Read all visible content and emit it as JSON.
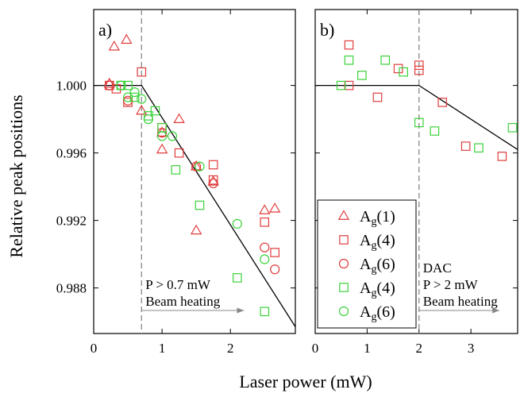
{
  "colors": {
    "red": "#e03c3c",
    "green": "#3bd23b",
    "axis": "#000000",
    "dash": "#888888",
    "arrow": "#888888"
  },
  "chart_data": [
    {
      "type": "scatter",
      "panel_label": "a)",
      "xlabel": "Laser power (mW)",
      "ylabel": "Relative peak positions",
      "xlim": [
        0,
        2.95
      ],
      "ylim": [
        0.9853,
        1.0045
      ],
      "xticks": [
        0,
        1,
        2
      ],
      "yticks": [
        0.988,
        0.992,
        0.996,
        1.0
      ],
      "ytick_labels": [
        "0.988",
        "0.992",
        "0.996",
        "1.000"
      ],
      "threshold_x": 0.7,
      "fit_line": [
        [
          0,
          1.0
        ],
        [
          0.7,
          1.0
        ],
        [
          2.95,
          0.9857
        ]
      ],
      "annotation": {
        "lines": [
          "P > 0.7 mW",
          "Beam heating"
        ],
        "arrow_from": 0.7,
        "arrow_to": 2.2
      },
      "series": [
        {
          "name": "Ag(1)",
          "marker": "triangle",
          "color": "red",
          "points": [
            [
              0.3,
              1.0023
            ],
            [
              0.48,
              1.0027
            ],
            [
              0.23,
              1.0001
            ],
            [
              0.7,
              0.9985
            ],
            [
              1.0,
              0.9962
            ],
            [
              1.0,
              0.9972
            ],
            [
              1.25,
              0.998
            ],
            [
              1.5,
              0.9952
            ],
            [
              1.75,
              0.9943
            ],
            [
              1.5,
              0.9914
            ],
            [
              2.5,
              0.9926
            ],
            [
              2.65,
              0.9927
            ]
          ]
        },
        {
          "name": "Ag(4)",
          "marker": "square",
          "color": "red",
          "points": [
            [
              0.23,
              1.0
            ],
            [
              0.33,
              0.9998
            ],
            [
              0.5,
              0.999
            ],
            [
              0.7,
              1.0008
            ],
            [
              1.0,
              0.9975
            ],
            [
              1.25,
              0.996
            ],
            [
              1.75,
              0.9953
            ],
            [
              1.75,
              0.9944
            ],
            [
              2.5,
              0.9919
            ],
            [
              2.65,
              0.9901
            ]
          ]
        },
        {
          "name": "Ag(6)",
          "marker": "circle",
          "color": "red",
          "points": [
            [
              0.23,
              1.0
            ],
            [
              0.5,
              0.9991
            ],
            [
              1.0,
              0.9972
            ],
            [
              1.5,
              0.9952
            ],
            [
              1.75,
              0.9942
            ],
            [
              2.5,
              0.9904
            ],
            [
              2.65,
              0.9891
            ]
          ]
        },
        {
          "name": "Ag(4)",
          "marker": "square",
          "color": "green",
          "points": [
            [
              0.4,
              1.0
            ],
            [
              0.5,
              1.0
            ],
            [
              0.6,
              0.9993
            ],
            [
              0.8,
              0.9982
            ],
            [
              0.9,
              0.9985
            ],
            [
              1.0,
              0.9975
            ],
            [
              1.2,
              0.995
            ],
            [
              1.55,
              0.9929
            ],
            [
              2.1,
              0.9886
            ],
            [
              2.5,
              0.9866
            ]
          ]
        },
        {
          "name": "Ag(6)",
          "marker": "circle",
          "color": "green",
          "points": [
            [
              0.4,
              1.0
            ],
            [
              0.5,
              0.9993
            ],
            [
              0.6,
              0.9996
            ],
            [
              0.7,
              0.9992
            ],
            [
              0.8,
              0.998
            ],
            [
              1.0,
              0.997
            ],
            [
              1.15,
              0.997
            ],
            [
              1.55,
              0.9952
            ],
            [
              2.1,
              0.9918
            ],
            [
              2.5,
              0.9897
            ]
          ]
        }
      ]
    },
    {
      "type": "scatter",
      "panel_label": "b)",
      "xlim": [
        0,
        3.9
      ],
      "ylim": [
        0.9853,
        1.0045
      ],
      "xticks": [
        0,
        1,
        2,
        3
      ],
      "threshold_x": 2.0,
      "fit_line": [
        [
          0,
          1.0
        ],
        [
          2.0,
          1.0
        ],
        [
          3.9,
          0.9962
        ]
      ],
      "annotation": {
        "lines": [
          "DAC",
          "P > 2 mW",
          "Beam heating"
        ],
        "arrow_from": 2.0,
        "arrow_to": 3.55
      },
      "series": [
        {
          "name": "Ag(4)",
          "marker": "square",
          "color": "red",
          "points": [
            [
              0.65,
              1.0024
            ],
            [
              0.65,
              1.0
            ],
            [
              1.2,
              0.9993
            ],
            [
              1.6,
              1.001
            ],
            [
              2.0,
              1.0012
            ],
            [
              2.0,
              1.0009
            ],
            [
              2.45,
              0.999
            ],
            [
              2.9,
              0.9964
            ],
            [
              3.6,
              0.9958
            ]
          ]
        },
        {
          "name": "Ag(4)",
          "marker": "square",
          "color": "green",
          "points": [
            [
              0.5,
              1.0
            ],
            [
              0.65,
              1.0015
            ],
            [
              0.9,
              1.0006
            ],
            [
              1.35,
              1.0015
            ],
            [
              1.7,
              1.0008
            ],
            [
              2.0,
              0.9978
            ],
            [
              2.3,
              0.9973
            ],
            [
              3.15,
              0.9963
            ],
            [
              3.8,
              0.9975
            ]
          ]
        }
      ]
    }
  ],
  "legend": [
    {
      "base": "A",
      "sub": "g",
      "suffix": "(1)",
      "marker": "triangle",
      "color": "red"
    },
    {
      "base": "A",
      "sub": "g",
      "suffix": "(4)",
      "marker": "square",
      "color": "red"
    },
    {
      "base": "A",
      "sub": "g",
      "suffix": "(6)",
      "marker": "circle",
      "color": "red"
    },
    {
      "base": "A",
      "sub": "g",
      "suffix": "(4)",
      "marker": "square",
      "color": "green"
    },
    {
      "base": "A",
      "sub": "g",
      "suffix": "(6)",
      "marker": "circle",
      "color": "green"
    }
  ]
}
